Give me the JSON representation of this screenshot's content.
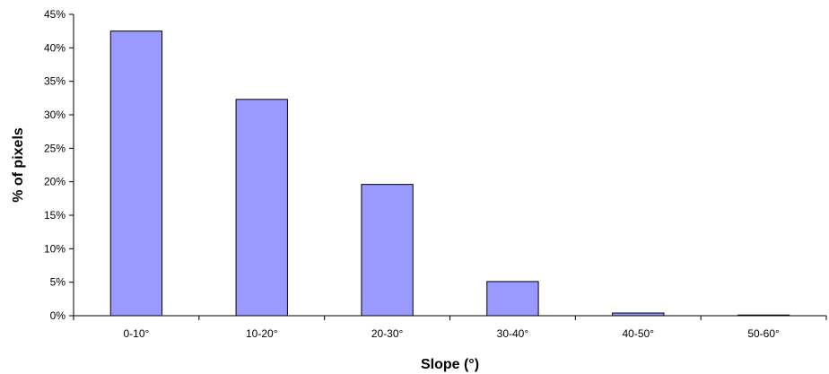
{
  "chart_data": {
    "type": "bar",
    "categories": [
      "0-10°",
      "10-20°",
      "20-30°",
      "30-40°",
      "40-50°",
      "50-60°"
    ],
    "values": [
      42.5,
      32.3,
      19.6,
      5.1,
      0.4,
      0.1
    ],
    "value_unit": "%",
    "title": "",
    "xlabel": "Slope (°)",
    "ylabel": "% of pixels",
    "ylim": [
      0,
      45
    ],
    "yticks": [
      "0%",
      "5%",
      "10%",
      "15%",
      "20%",
      "25%",
      "30%",
      "35%",
      "40%",
      "45%"
    ],
    "grid": false,
    "legend": "none",
    "bar_color": "#9999ff",
    "bar_edge_color": "#000000"
  }
}
